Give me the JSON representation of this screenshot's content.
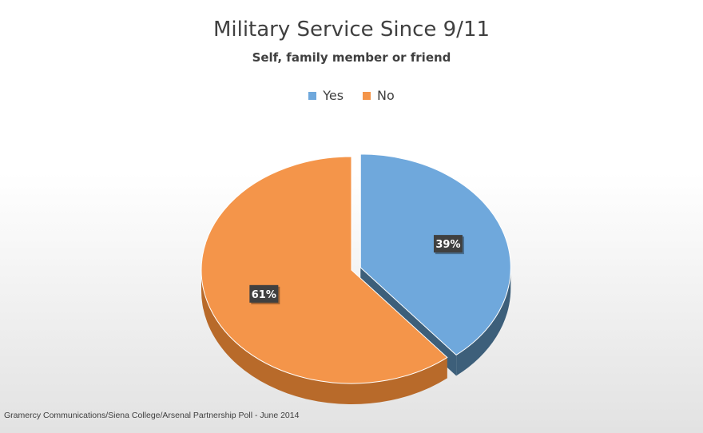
{
  "chart_data": {
    "type": "pie",
    "title": "Military Service Since 9/11",
    "subtitle": "Self, family member or friend",
    "slices": [
      {
        "name": "Yes",
        "value": 39,
        "label": "39%",
        "color": "#6fa8dc",
        "side_color": "#3d5f7a",
        "exploded": true
      },
      {
        "name": "No",
        "value": 61,
        "label": "61%",
        "color": "#f4954a",
        "side_color": "#b86a2a",
        "exploded": false
      }
    ],
    "legend_position": "top",
    "style": "3d"
  },
  "source": "Gramercy Communications/Siena College/Arsenal Partnership Poll - June 2014"
}
